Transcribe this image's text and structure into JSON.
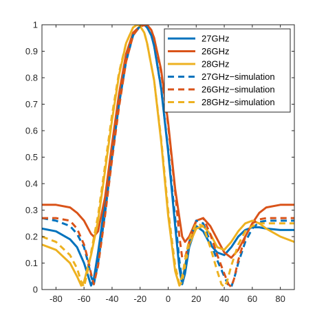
{
  "chart_data": {
    "type": "line",
    "title": "",
    "xlabel": "",
    "ylabel": "",
    "xlim": [
      -90,
      90
    ],
    "ylim": [
      0,
      1
    ],
    "x_ticks": [
      -80,
      -60,
      -40,
      -20,
      0,
      20,
      40,
      60,
      80
    ],
    "y_ticks": [
      0,
      0.1,
      0.2,
      0.3,
      0.4,
      0.5,
      0.6,
      0.7,
      0.8,
      0.9,
      1
    ],
    "grid": false,
    "legend_position": "top-right",
    "series": [
      {
        "name": "27GHz",
        "color": "#0072BD",
        "style": "solid",
        "x": [
          -90,
          -80,
          -70,
          -65,
          -60,
          -57,
          -55,
          -53,
          -50,
          -45,
          -40,
          -35,
          -30,
          -25,
          -20,
          -17,
          -15,
          -12,
          -10,
          -5,
          0,
          5,
          8,
          10,
          12,
          15,
          20,
          25,
          30,
          35,
          40,
          45,
          50,
          55,
          60,
          65,
          70,
          80,
          90
        ],
        "y": [
          0.23,
          0.22,
          0.19,
          0.16,
          0.1,
          0.05,
          0.015,
          0.04,
          0.14,
          0.33,
          0.53,
          0.72,
          0.87,
          0.96,
          0.995,
          1.0,
          0.99,
          0.96,
          0.92,
          0.76,
          0.52,
          0.24,
          0.08,
          0.02,
          0.06,
          0.16,
          0.24,
          0.22,
          0.17,
          0.14,
          0.13,
          0.16,
          0.2,
          0.225,
          0.235,
          0.235,
          0.23,
          0.225,
          0.225
        ]
      },
      {
        "name": "26GHz",
        "color": "#D95319",
        "style": "solid",
        "x": [
          -90,
          -80,
          -70,
          -65,
          -60,
          -57,
          -55,
          -53,
          -50,
          -45,
          -40,
          -35,
          -30,
          -25,
          -20,
          -15,
          -12,
          -10,
          -5,
          0,
          5,
          10,
          12,
          15,
          20,
          25,
          30,
          35,
          40,
          45,
          50,
          55,
          60,
          65,
          70,
          80,
          90
        ],
        "y": [
          0.32,
          0.32,
          0.31,
          0.29,
          0.26,
          0.23,
          0.21,
          0.2,
          0.22,
          0.35,
          0.55,
          0.74,
          0.89,
          0.97,
          0.995,
          1.0,
          0.98,
          0.95,
          0.83,
          0.63,
          0.38,
          0.2,
          0.18,
          0.2,
          0.26,
          0.27,
          0.24,
          0.19,
          0.14,
          0.12,
          0.15,
          0.2,
          0.25,
          0.29,
          0.31,
          0.32,
          0.32
        ]
      },
      {
        "name": "28GHz",
        "color": "#EDB120",
        "style": "solid",
        "x": [
          -90,
          -80,
          -70,
          -65,
          -62,
          -60,
          -57,
          -55,
          -50,
          -45,
          -40,
          -35,
          -30,
          -25,
          -22,
          -20,
          -17,
          -15,
          -10,
          -5,
          0,
          5,
          8,
          10,
          12,
          15,
          20,
          25,
          30,
          35,
          40,
          45,
          50,
          55,
          60,
          65,
          70,
          80,
          90
        ],
        "y": [
          0.17,
          0.15,
          0.1,
          0.05,
          0.015,
          0.03,
          0.09,
          0.13,
          0.26,
          0.45,
          0.64,
          0.81,
          0.93,
          0.99,
          1.0,
          0.995,
          0.97,
          0.93,
          0.79,
          0.56,
          0.28,
          0.07,
          0.015,
          0.03,
          0.09,
          0.17,
          0.23,
          0.24,
          0.21,
          0.16,
          0.15,
          0.18,
          0.22,
          0.25,
          0.26,
          0.25,
          0.23,
          0.2,
          0.18
        ]
      },
      {
        "name": "27GHz−simulation",
        "color": "#0072BD",
        "style": "dashed",
        "x": [
          -90,
          -80,
          -70,
          -65,
          -60,
          -57,
          -55,
          -53,
          -50,
          -45,
          -40,
          -35,
          -30,
          -25,
          -20,
          -17,
          -15,
          -12,
          -10,
          -5,
          0,
          5,
          8,
          10,
          12,
          15,
          20,
          25,
          30,
          35,
          40,
          43,
          45,
          47,
          50,
          55,
          60,
          65,
          70,
          80,
          90
        ],
        "y": [
          0.27,
          0.26,
          0.24,
          0.21,
          0.16,
          0.1,
          0.05,
          0.02,
          0.1,
          0.29,
          0.5,
          0.7,
          0.86,
          0.96,
          0.995,
          1.0,
          0.99,
          0.96,
          0.92,
          0.76,
          0.53,
          0.27,
          0.11,
          0.03,
          0.08,
          0.18,
          0.26,
          0.25,
          0.18,
          0.11,
          0.05,
          0.015,
          0.01,
          0.04,
          0.1,
          0.18,
          0.23,
          0.255,
          0.26,
          0.26,
          0.26
        ]
      },
      {
        "name": "26GHz−simulation",
        "color": "#D95319",
        "style": "dashed",
        "x": [
          -90,
          -80,
          -70,
          -65,
          -60,
          -57,
          -55,
          -53,
          -50,
          -45,
          -40,
          -35,
          -30,
          -25,
          -20,
          -15,
          -12,
          -10,
          -5,
          0,
          5,
          8,
          10,
          12,
          15,
          20,
          25,
          30,
          35,
          40,
          43,
          45,
          47,
          50,
          55,
          60,
          65,
          70,
          80,
          90
        ],
        "y": [
          0.27,
          0.27,
          0.26,
          0.23,
          0.17,
          0.11,
          0.06,
          0.02,
          0.09,
          0.28,
          0.49,
          0.69,
          0.86,
          0.96,
          0.995,
          1.0,
          0.98,
          0.95,
          0.82,
          0.62,
          0.37,
          0.2,
          0.12,
          0.12,
          0.18,
          0.26,
          0.27,
          0.21,
          0.13,
          0.06,
          0.02,
          0.01,
          0.04,
          0.11,
          0.2,
          0.25,
          0.265,
          0.27,
          0.27,
          0.27
        ]
      },
      {
        "name": "28GHz−simulation",
        "color": "#EDB120",
        "style": "dashed",
        "x": [
          -90,
          -80,
          -70,
          -65,
          -62,
          -60,
          -57,
          -55,
          -50,
          -45,
          -40,
          -35,
          -30,
          -25,
          -22,
          -20,
          -17,
          -15,
          -10,
          -5,
          0,
          5,
          8,
          10,
          12,
          15,
          20,
          25,
          30,
          35,
          38,
          40,
          42,
          45,
          50,
          55,
          60,
          65,
          70,
          80,
          90
        ],
        "y": [
          0.2,
          0.18,
          0.13,
          0.08,
          0.03,
          0.01,
          0.08,
          0.14,
          0.28,
          0.47,
          0.66,
          0.82,
          0.93,
          0.99,
          1.0,
          0.995,
          0.97,
          0.93,
          0.79,
          0.57,
          0.3,
          0.09,
          0.02,
          0.05,
          0.11,
          0.19,
          0.25,
          0.24,
          0.16,
          0.07,
          0.02,
          0.01,
          0.03,
          0.09,
          0.17,
          0.22,
          0.24,
          0.25,
          0.25,
          0.25,
          0.25
        ]
      }
    ]
  }
}
